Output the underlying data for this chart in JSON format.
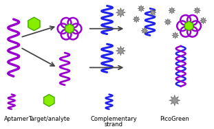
{
  "background_color": "#ffffff",
  "aptamer_color": "#9900cc",
  "target_color": "#88ee00",
  "comp_strand_color": "#2222ee",
  "picogreen_color": "#999999",
  "arrow_color": "#444444",
  "text_color": "#000000",
  "legend_labels": [
    "Aptamer",
    "Target/analyte",
    "Complementary\nstrand",
    "PicoGreen"
  ],
  "figsize": [
    3.11,
    1.88
  ],
  "dpi": 100
}
